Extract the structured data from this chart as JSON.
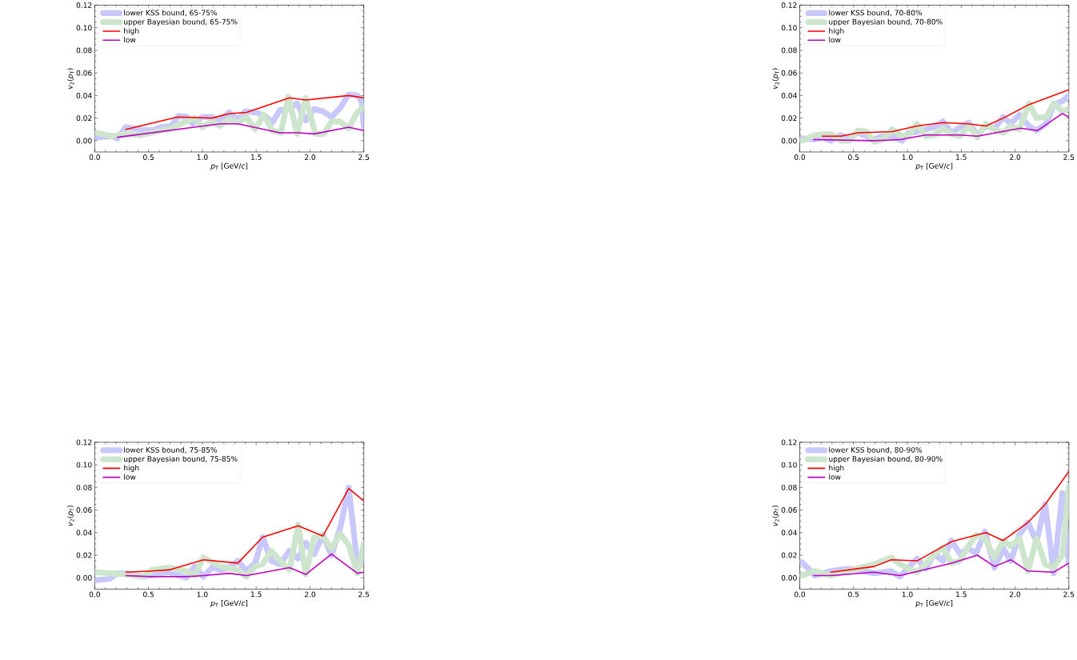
{
  "chart_data": [
    {
      "type": "line",
      "xlabel": "*p*$_{T}$ [GeV/*c*]",
      "ylabel": "*v*$_{2}$(*p*$_{T}$)",
      "xlim": [
        0,
        2.5
      ],
      "ylim": [
        -0.01,
        0.12
      ],
      "xticks": [
        {
          "value": 0,
          "label": "0.0"
        },
        {
          "value": 0.5,
          "label": "0.5"
        },
        {
          "value": 1,
          "label": "1.0"
        },
        {
          "value": 1.5,
          "label": "1.5"
        },
        {
          "value": 2,
          "label": "2.0"
        },
        {
          "value": 2.5,
          "label": "2.5"
        }
      ],
      "yticks": [
        {
          "value": 0,
          "label": "0.00"
        },
        {
          "value": 0.02,
          "label": "0.02"
        },
        {
          "value": 0.04,
          "label": "0.04"
        },
        {
          "value": 0.06,
          "label": "0.06"
        },
        {
          "value": 0.08,
          "label": "0.08"
        },
        {
          "value": 0.1,
          "label": "0.10"
        },
        {
          "value": 0.12,
          "label": "0.12"
        }
      ],
      "legend": "top left",
      "series": [
        {
          "name": "lower KSS bound, 65-75%",
          "color": "#c8c8fa",
          "x": [
            0.02,
            0.16,
            0.21,
            0.29,
            0.42,
            0.53,
            0.62,
            0.71,
            0.78,
            0.86,
            0.91,
            1.0,
            1.09,
            1.15,
            1.25,
            1.33,
            1.4,
            1.5,
            1.58,
            1.65,
            1.72,
            1.8,
            1.88,
            1.96,
            2.04,
            2.12,
            2.2,
            2.28,
            2.36,
            2.44,
            2.48,
            2.5
          ],
          "values": [
            0.003,
            0.004,
            0.002,
            0.012,
            0.01,
            0.009,
            0.012,
            0.013,
            0.022,
            0.021,
            0.015,
            0.021,
            0.021,
            0.017,
            0.025,
            0.019,
            0.026,
            0.025,
            0.022,
            0.016,
            0.027,
            0.028,
            0.033,
            0.018,
            0.028,
            0.026,
            0.021,
            0.029,
            0.041,
            0.04,
            0.035,
            0.012
          ]
        },
        {
          "name": "upper Bayesian bound, 65-75%",
          "color": "#cce5cc",
          "x": [
            0.02,
            0.16,
            0.29,
            0.42,
            0.53,
            0.62,
            0.71,
            0.8,
            0.92,
            1.0,
            1.09,
            1.16,
            1.25,
            1.33,
            1.41,
            1.49,
            1.57,
            1.65,
            1.73,
            1.8,
            1.88,
            1.96,
            2.05,
            2.13,
            2.2,
            2.28,
            2.36,
            2.43,
            2.5
          ],
          "values": [
            0.007,
            0.004,
            0.006,
            0.005,
            0.007,
            0.009,
            0.011,
            0.015,
            0.02,
            0.012,
            0.017,
            0.013,
            0.019,
            0.016,
            0.021,
            0.01,
            0.023,
            0.009,
            0.007,
            0.039,
            0.006,
            0.038,
            0.006,
            0.006,
            0.017,
            0.017,
            0.011,
            0.024,
            0.03
          ]
        },
        {
          "name": "high",
          "color": "#ff0000",
          "x": [
            0.29,
            0.77,
            1.09,
            1.25,
            1.41,
            1.81,
            1.96,
            2.36,
            2.5
          ],
          "values": [
            0.01,
            0.021,
            0.02,
            0.024,
            0.025,
            0.038,
            0.036,
            0.04,
            0.038
          ]
        },
        {
          "name": "low",
          "color": "#bf00bf",
          "x": [
            0.21,
            1.17,
            1.33,
            1.72,
            1.89,
            2.04,
            2.36,
            2.5
          ],
          "values": [
            0.003,
            0.015,
            0.015,
            0.007,
            0.007,
            0.006,
            0.012,
            0.009
          ]
        }
      ]
    },
    {
      "type": "line",
      "xlabel": "*p*$_{T}$ [GeV/*c*]",
      "ylabel": "*v*$_{2}$(*p*$_{T}$)",
      "xlim": [
        0,
        2.5
      ],
      "ylim": [
        -0.01,
        0.12
      ],
      "xticks": [
        {
          "value": 0,
          "label": "0.0"
        },
        {
          "value": 0.5,
          "label": "0.5"
        },
        {
          "value": 1,
          "label": "1.0"
        },
        {
          "value": 1.5,
          "label": "1.5"
        },
        {
          "value": 2,
          "label": "2.0"
        },
        {
          "value": 2.5,
          "label": "2.5"
        }
      ],
      "yticks": [
        {
          "value": 0,
          "label": "0.00"
        },
        {
          "value": 0.02,
          "label": "0.02"
        },
        {
          "value": 0.04,
          "label": "0.04"
        },
        {
          "value": 0.06,
          "label": "0.06"
        },
        {
          "value": 0.08,
          "label": "0.08"
        },
        {
          "value": 0.1,
          "label": "0.10"
        },
        {
          "value": 0.12,
          "label": "0.12"
        }
      ],
      "legend": "top left",
      "series": [
        {
          "name": "lower KSS bound, 70-80%",
          "color": "#c8c8fa",
          "x": [
            0.02,
            0.14,
            0.21,
            0.29,
            0.38,
            0.46,
            0.54,
            0.62,
            0.69,
            0.77,
            0.86,
            0.95,
            1.01,
            1.09,
            1.17,
            1.25,
            1.33,
            1.41,
            1.49,
            1.57,
            1.65,
            1.73,
            1.81,
            1.89,
            1.96,
            2.04,
            2.13,
            2.2,
            2.29,
            2.36,
            2.44,
            2.5
          ],
          "values": [
            0.002,
            0.001,
            0.003,
            0.0,
            0.005,
            0.002,
            0.007,
            0.004,
            0.001,
            0.004,
            0.004,
            0.0,
            0.007,
            0.008,
            0.01,
            0.012,
            0.017,
            0.007,
            0.012,
            0.016,
            0.005,
            0.013,
            0.011,
            0.021,
            0.015,
            0.023,
            0.013,
            0.009,
            0.015,
            0.032,
            0.035,
            0.04
          ]
        },
        {
          "name": "upper Bayesian bound, 70-80%",
          "color": "#cce5cc",
          "x": [
            0.02,
            0.14,
            0.29,
            0.38,
            0.46,
            0.54,
            0.62,
            0.69,
            0.77,
            0.86,
            0.95,
            1.01,
            1.09,
            1.17,
            1.25,
            1.33,
            1.41,
            1.49,
            1.57,
            1.65,
            1.73,
            1.81,
            1.89,
            1.96,
            2.04,
            2.13,
            2.2,
            2.29,
            2.36,
            2.44,
            2.5
          ],
          "values": [
            0.0,
            0.005,
            0.006,
            0.0,
            0.0,
            0.009,
            0.008,
            -0.001,
            0.001,
            0.01,
            0.004,
            0.004,
            0.015,
            0.004,
            0.005,
            0.011,
            0.006,
            0.004,
            0.013,
            0.003,
            0.015,
            0.01,
            0.007,
            0.013,
            0.01,
            0.033,
            0.02,
            0.021,
            0.033,
            0.026,
            0.028
          ]
        },
        {
          "name": "high",
          "color": "#ff0000",
          "x": [
            0.21,
            0.38,
            0.54,
            0.86,
            1.09,
            1.33,
            1.56,
            1.73,
            1.89,
            2.13,
            2.5
          ],
          "values": [
            0.004,
            0.004,
            0.007,
            0.008,
            0.013,
            0.016,
            0.015,
            0.013,
            0.02,
            0.032,
            0.045
          ]
        },
        {
          "name": "low",
          "color": "#bf00bf",
          "x": [
            0.13,
            0.69,
            0.93,
            1.17,
            1.49,
            1.65,
            1.88,
            2.05,
            2.21,
            2.44,
            2.5
          ],
          "values": [
            0.001,
            0.0,
            0.001,
            0.005,
            0.005,
            0.004,
            0.008,
            0.011,
            0.009,
            0.024,
            0.021
          ]
        }
      ]
    },
    {
      "type": "line",
      "xlabel": "*p*$_{T}$ [GeV/*c*]",
      "ylabel": "*v*$_{2}$(*p*$_{T}$)",
      "xlim": [
        0,
        2.5
      ],
      "ylim": [
        -0.01,
        0.12
      ],
      "xticks": [
        {
          "value": 0,
          "label": "0.0"
        },
        {
          "value": 0.5,
          "label": "0.5"
        },
        {
          "value": 1,
          "label": "1.0"
        },
        {
          "value": 1.5,
          "label": "1.5"
        },
        {
          "value": 2,
          "label": "2.0"
        },
        {
          "value": 2.5,
          "label": "2.5"
        }
      ],
      "yticks": [
        {
          "value": 0,
          "label": "0.00"
        },
        {
          "value": 0.02,
          "label": "0.02"
        },
        {
          "value": 0.04,
          "label": "0.04"
        },
        {
          "value": 0.06,
          "label": "0.06"
        },
        {
          "value": 0.08,
          "label": "0.08"
        },
        {
          "value": 0.1,
          "label": "0.10"
        },
        {
          "value": 0.12,
          "label": "0.12"
        }
      ],
      "legend": "top left",
      "series": [
        {
          "name": "lower KSS bound, 75-85%",
          "color": "#c8c8fa",
          "x": [
            0.02,
            0.14,
            0.21,
            0.29,
            0.45,
            0.61,
            0.69,
            0.85,
            0.93,
            1.01,
            1.09,
            1.17,
            1.25,
            1.33,
            1.41,
            1.49,
            1.56,
            1.64,
            1.72,
            1.81,
            1.89,
            1.96,
            2.04,
            2.12,
            2.2,
            2.28,
            2.36,
            2.44,
            2.5
          ],
          "values": [
            -0.002,
            -0.001,
            0.004,
            0.004,
            0.001,
            0.004,
            0.005,
            0.0,
            0.01,
            0.001,
            0.009,
            0.007,
            0.009,
            0.015,
            0.006,
            0.013,
            0.036,
            0.015,
            0.012,
            0.024,
            0.017,
            0.031,
            0.021,
            0.038,
            0.02,
            0.044,
            0.08,
            0.012,
            0.015
          ]
        },
        {
          "name": "upper Bayesian bound, 75-85%",
          "color": "#cce5cc",
          "x": [
            0.02,
            0.14,
            0.29,
            0.45,
            0.53,
            0.69,
            0.85,
            0.93,
            1.01,
            1.17,
            1.33,
            1.41,
            1.49,
            1.56,
            1.64,
            1.72,
            1.81,
            1.89,
            1.96,
            2.04,
            2.12,
            2.2,
            2.28,
            2.36,
            2.44,
            2.5
          ],
          "values": [
            0.005,
            0.004,
            0.003,
            0.001,
            0.007,
            0.009,
            0.006,
            0.002,
            0.018,
            0.01,
            0.007,
            0.001,
            0.01,
            0.012,
            0.024,
            0.015,
            0.007,
            0.047,
            0.003,
            0.036,
            0.037,
            0.026,
            0.039,
            0.029,
            0.004,
            0.03
          ]
        },
        {
          "name": "high",
          "color": "#ff0000",
          "x": [
            0.29,
            0.53,
            0.69,
            1.01,
            1.33,
            1.56,
            1.89,
            2.12,
            2.36,
            2.5
          ],
          "values": [
            0.005,
            0.006,
            0.007,
            0.016,
            0.013,
            0.036,
            0.046,
            0.037,
            0.079,
            0.068
          ]
        },
        {
          "name": "low",
          "color": "#bf00bf",
          "x": [
            0.29,
            0.53,
            0.85,
            1.01,
            1.25,
            1.41,
            1.81,
            1.96,
            2.2,
            2.44,
            2.5
          ],
          "values": [
            0.002,
            0.001,
            0.001,
            0.002,
            0.004,
            0.002,
            0.009,
            0.003,
            0.021,
            0.004,
            0.005
          ]
        }
      ]
    },
    {
      "type": "line",
      "xlabel": "*p*$_{T}$ [GeV/*c*]",
      "ylabel": "*v*$_{2}$(*p*$_{T}$)",
      "xlim": [
        0,
        2.5
      ],
      "ylim": [
        -0.01,
        0.12
      ],
      "xticks": [
        {
          "value": 0,
          "label": "0.0"
        },
        {
          "value": 0.5,
          "label": "0.5"
        },
        {
          "value": 1,
          "label": "1.0"
        },
        {
          "value": 1.5,
          "label": "1.5"
        },
        {
          "value": 2,
          "label": "2.0"
        },
        {
          "value": 2.5,
          "label": "2.5"
        }
      ],
      "yticks": [
        {
          "value": 0,
          "label": "0.00"
        },
        {
          "value": 0.02,
          "label": "0.02"
        },
        {
          "value": 0.04,
          "label": "0.04"
        },
        {
          "value": 0.06,
          "label": "0.06"
        },
        {
          "value": 0.08,
          "label": "0.08"
        },
        {
          "value": 0.1,
          "label": "0.10"
        },
        {
          "value": 0.12,
          "label": "0.12"
        }
      ],
      "legend": "top left",
      "series": [
        {
          "name": "lower KSS bound, 80-90%",
          "color": "#c8c8fa",
          "x": [
            0.02,
            0.14,
            0.29,
            0.45,
            0.53,
            0.69,
            0.85,
            0.93,
            1.09,
            1.17,
            1.25,
            1.33,
            1.41,
            1.49,
            1.56,
            1.64,
            1.72,
            1.81,
            1.89,
            1.96,
            2.04,
            2.12,
            2.2,
            2.28,
            2.36,
            2.44,
            2.5
          ],
          "values": [
            0.014,
            0.002,
            0.006,
            0.008,
            0.007,
            0.004,
            0.006,
            0.001,
            0.017,
            0.008,
            0.021,
            0.015,
            0.033,
            0.021,
            0.026,
            0.022,
            0.041,
            0.009,
            0.026,
            0.015,
            0.038,
            0.049,
            0.032,
            0.065,
            0.004,
            0.075,
            0.013
          ]
        },
        {
          "name": "upper Bayesian bound, 80-90%",
          "color": "#cce5cc",
          "x": [
            0.02,
            0.14,
            0.29,
            0.45,
            0.69,
            0.85,
            0.93,
            1.09,
            1.25,
            1.33,
            1.41,
            1.49,
            1.56,
            1.64,
            1.72,
            1.81,
            1.89,
            1.96,
            2.04,
            2.12,
            2.2,
            2.28,
            2.36,
            2.44,
            2.5
          ],
          "values": [
            0.002,
            0.006,
            0.002,
            0.006,
            0.012,
            0.018,
            0.012,
            0.005,
            0.02,
            0.027,
            0.013,
            0.015,
            0.027,
            0.038,
            0.035,
            0.018,
            0.033,
            0.028,
            0.035,
            0.006,
            0.035,
            0.012,
            0.009,
            0.02,
            0.081
          ]
        },
        {
          "name": "high",
          "color": "#ff0000",
          "x": [
            0.29,
            0.69,
            0.85,
            1.09,
            1.41,
            1.73,
            1.89,
            2.12,
            2.28,
            2.5
          ],
          "values": [
            0.005,
            0.01,
            0.016,
            0.015,
            0.032,
            0.04,
            0.033,
            0.049,
            0.065,
            0.094
          ]
        },
        {
          "name": "low",
          "color": "#bf00bf",
          "x": [
            0.13,
            0.29,
            0.69,
            0.93,
            1.41,
            1.65,
            1.81,
            1.96,
            2.12,
            2.36,
            2.5
          ],
          "values": [
            0.002,
            0.002,
            0.005,
            0.002,
            0.013,
            0.02,
            0.01,
            0.016,
            0.006,
            0.005,
            0.013
          ]
        }
      ]
    }
  ]
}
